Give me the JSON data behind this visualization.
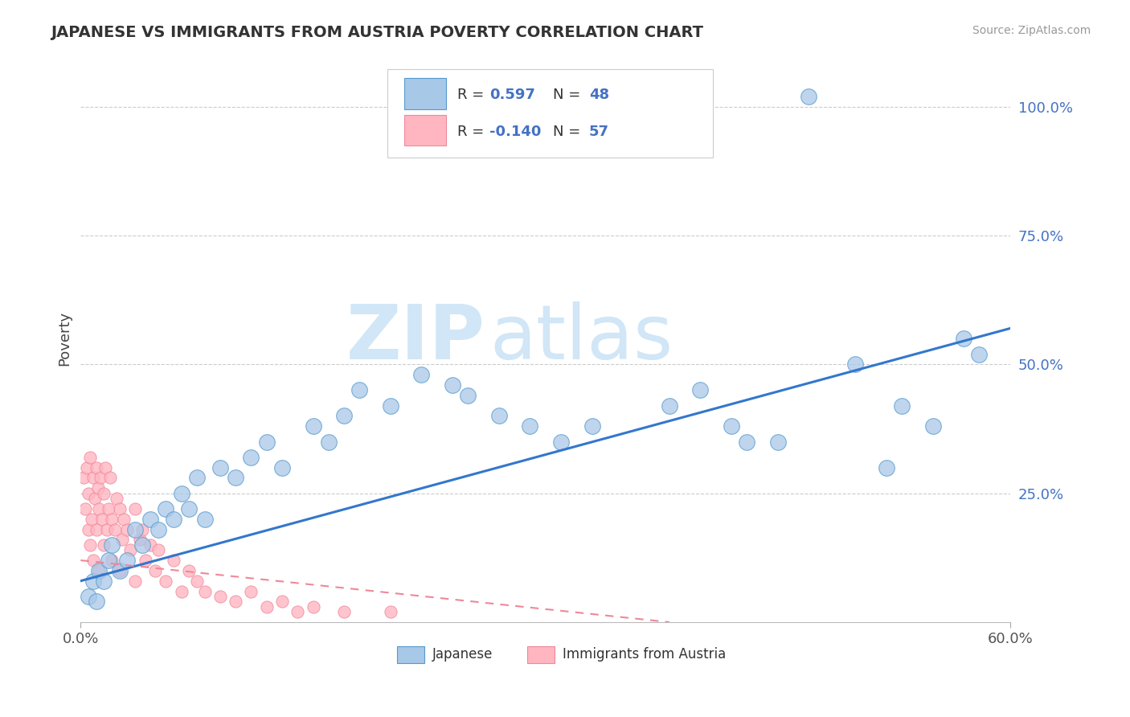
{
  "title": "JAPANESE VS IMMIGRANTS FROM AUSTRIA POVERTY CORRELATION CHART",
  "source": "Source: ZipAtlas.com",
  "ylabel": "Poverty",
  "xlim": [
    0.0,
    0.6
  ],
  "ylim": [
    0.0,
    1.1
  ],
  "xtick_labels": [
    "0.0%",
    "60.0%"
  ],
  "xtick_positions": [
    0.0,
    0.6
  ],
  "ytick_labels": [
    "25.0%",
    "50.0%",
    "75.0%",
    "100.0%"
  ],
  "ytick_positions": [
    0.25,
    0.5,
    0.75,
    1.0
  ],
  "japanese_color": "#a8c8e8",
  "austria_color": "#ffb6c1",
  "japanese_edge": "#5599cc",
  "austria_edge": "#ee8899",
  "trend_blue": "#3377cc",
  "trend_pink": "#ee8899",
  "R_japanese": "0.597",
  "N_japanese": "48",
  "R_austria": "-0.140",
  "N_austria": "57",
  "watermark_ZIP": "ZIP",
  "watermark_atlas": "atlas",
  "legend_japanese": "Japanese",
  "legend_austria": "Immigrants from Austria",
  "background_color": "#ffffff",
  "grid_color": "#cccccc",
  "trend_jp_x0": 0.0,
  "trend_jp_y0": 0.08,
  "trend_jp_x1": 0.6,
  "trend_jp_y1": 0.57,
  "trend_at_x0": 0.0,
  "trend_at_y0": 0.12,
  "trend_at_x1": 0.38,
  "trend_at_y1": 0.0
}
